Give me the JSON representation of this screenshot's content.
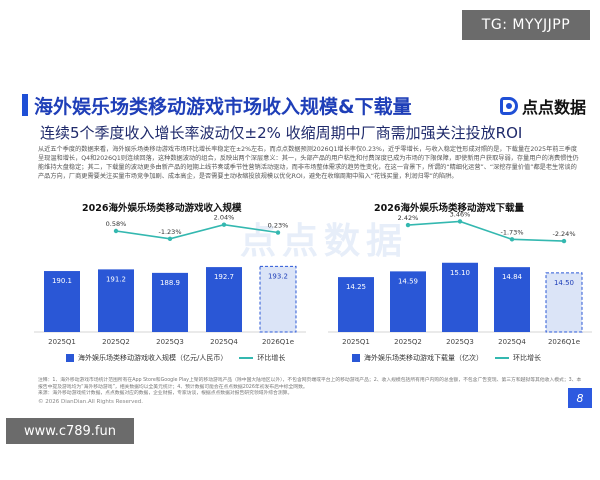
{
  "tg_badge": "TG: MYYJJPP",
  "site_badge": "www.c789.fun",
  "logo": "点点数据",
  "title": "海外娱乐场类移动游戏市场收入规模&下载量",
  "subtitle": "连续5个季度收入增长率波动仅±2% 收缩周期中厂商需加强关注投放ROI",
  "body": "从近五个季度的数据来看，海外娱乐场类移动游戏市场环比增长率稳定在±2%左右，而点点数据预测2026Q1增长率仅0.23%，近乎零增长，与收入稳定性形成对照的是，下载量在2025年前三季度呈现温和增长，Q4和2026Q1则连续回落，这种数据波动的组合，反映出两个深层意义：其一，头部产品的用户粘性和付费深度已成为市场的下限保障，即使新用户获取导弱，存量用户的消费惯性仍能维持大盘稳定；其二，下载量的波动更多由新产品的短期上线节奏或季节性营销活动驱动，而非市场整体需求的趋势性变化，在这一背景下，所谓的“精细化运营”、“深挖存量价值”都是老生常谈的产品方向，厂商更需要关注买量市场竞争加剧、成本高企，是否需要主动收缩投放规模以优化ROI，避免在收缩周期中陷入“花钱买量，利润归零”的陷阱。",
  "watermark": "点点数据",
  "notes": "注释：1、海外移动游戏市场统计范围所有在App Store和Google Play上架的移动游戏产品（除中国大陆地区以外），不包含网页端或平台上的移动游戏产品；2、收入规模包括所有用户内购的总金额，不包含广告变现、第三方和越狱等其他收入模式；3、本报告中提及游戏均为“海外移动游戏”，相关数据均以全美元统计；4、预计数据可能会在点点数据2026年初发布后中标全网数。",
  "source": "来源：海外移动游戏统计数据，点点数据对应的数据，企业财报，专家访谈，根据点点数据对报告研究领域外综合测算。",
  "footer": "© 2026 DianDian.All Rights Reserved.",
  "page_number": "8",
  "colors": {
    "bar": "#2a57d6",
    "bar_estimate_fill": "#dbe4f7",
    "line": "#34b8b0",
    "title": "#1f3fb8",
    "accent": "#1f4fd6"
  },
  "chart_data": [
    {
      "type": "bar",
      "title": "2026海外娱乐场类移动游戏收入规模",
      "categories": [
        "2025Q1",
        "2025Q2",
        "2025Q3",
        "2025Q4",
        "2026Q1e"
      ],
      "series": [
        {
          "name": "海外娱乐场类移动游戏收入规模（亿元/人民币）",
          "type": "bar",
          "values": [
            190.1,
            191.2,
            188.9,
            192.7,
            193.2
          ],
          "value_labels": [
            "190.1",
            "191.2",
            "188.9",
            "192.7",
            "193.2"
          ],
          "estimate_index": 4
        },
        {
          "name": "环比增长",
          "type": "line",
          "values": [
            null,
            0.58,
            -1.23,
            2.04,
            0.23
          ],
          "value_labels": [
            "",
            "0.58%",
            "-1.23%",
            "2.04%",
            "0.23%"
          ]
        }
      ],
      "grid": false
    },
    {
      "type": "bar",
      "title": "2026海外娱乐场类移动游戏下载量",
      "categories": [
        "2025Q1",
        "2025Q2",
        "2025Q3",
        "2025Q4",
        "2026Q1e"
      ],
      "series": [
        {
          "name": "海外娱乐场类移动游戏下载量（亿次）",
          "type": "bar",
          "values": [
            14.25,
            14.59,
            15.1,
            14.84,
            14.5
          ],
          "value_labels": [
            "14.25",
            "14.59",
            "15.10",
            "14.84",
            "14.50"
          ],
          "estimate_index": 4
        },
        {
          "name": "环比增长",
          "type": "line",
          "values": [
            null,
            2.42,
            3.46,
            -1.73,
            -2.24
          ],
          "value_labels": [
            "",
            "2.42%",
            "3.46%",
            "-1.73%",
            "-2.24%"
          ]
        }
      ],
      "grid": false
    }
  ]
}
